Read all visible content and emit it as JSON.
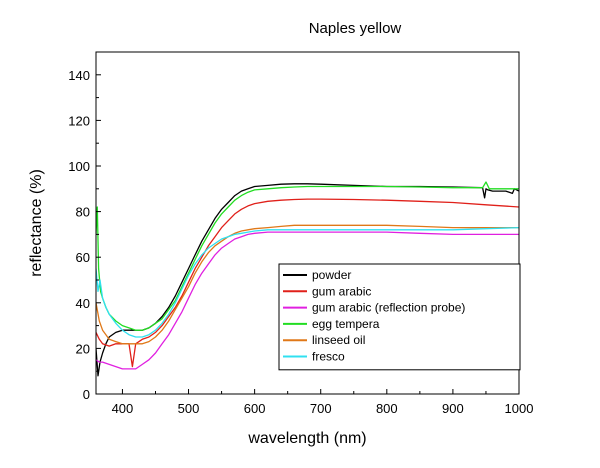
{
  "chart_data": {
    "type": "line",
    "title": "Naples yellow",
    "xlabel": "wavelength (nm)",
    "ylabel": "reflectance (%)",
    "xlim": [
      360,
      1000
    ],
    "ylim": [
      0,
      150
    ],
    "xticks": [
      400,
      500,
      600,
      700,
      800,
      900,
      1000
    ],
    "yticks": [
      0,
      20,
      40,
      60,
      80,
      100,
      120,
      140
    ],
    "grid": false,
    "legend_position": "lower-right",
    "series": [
      {
        "name": "powder",
        "color": "#000000",
        "x": [
          360,
          363,
          366,
          370,
          375,
          380,
          390,
          400,
          410,
          420,
          430,
          440,
          450,
          460,
          470,
          480,
          490,
          500,
          510,
          520,
          530,
          540,
          550,
          560,
          570,
          580,
          590,
          600,
          620,
          640,
          660,
          680,
          700,
          750,
          800,
          850,
          900,
          945,
          948,
          950,
          953,
          960,
          980,
          990,
          993,
          1000
        ],
        "y": [
          20,
          8,
          14,
          18,
          22,
          25,
          27,
          28,
          28,
          28,
          28,
          29,
          31,
          34,
          38,
          43,
          49,
          55,
          61,
          67,
          72,
          77,
          81,
          84,
          87,
          89,
          90,
          91,
          91.5,
          92,
          92.2,
          92.2,
          92,
          91.5,
          91,
          91,
          90.8,
          90.5,
          86,
          90,
          89.5,
          89,
          89,
          88,
          90,
          89
        ]
      },
      {
        "name": "gum arabic",
        "color": "#e0201a",
        "x": [
          360,
          365,
          370,
          380,
          390,
          400,
          410,
          415,
          420,
          425,
          430,
          440,
          450,
          460,
          470,
          480,
          490,
          500,
          510,
          520,
          530,
          540,
          550,
          560,
          570,
          580,
          590,
          600,
          620,
          640,
          660,
          680,
          700,
          750,
          800,
          850,
          900,
          950,
          1000
        ],
        "y": [
          27,
          24,
          22,
          21,
          22,
          22,
          22,
          12,
          22,
          23,
          24,
          25,
          27,
          30,
          34,
          38,
          43,
          49,
          55,
          60,
          65,
          69,
          73,
          76,
          79,
          81,
          82.5,
          83.5,
          84.5,
          85,
          85.3,
          85.5,
          85.5,
          85.3,
          85,
          84.5,
          84,
          83,
          82
        ]
      },
      {
        "name": "gum arabic (reflection probe)",
        "color": "#e020e0",
        "x": [
          360,
          365,
          370,
          380,
          390,
          400,
          410,
          420,
          430,
          440,
          450,
          460,
          470,
          480,
          490,
          500,
          510,
          520,
          530,
          540,
          550,
          560,
          570,
          580,
          590,
          600,
          620,
          640,
          660,
          680,
          700,
          750,
          800,
          850,
          900,
          950,
          1000
        ],
        "y": [
          15,
          14,
          14,
          13,
          12,
          11,
          11,
          11,
          13,
          15,
          18,
          22,
          26,
          31,
          36,
          42,
          48,
          53,
          57,
          61,
          64,
          66,
          68,
          69,
          70,
          70.5,
          71,
          71,
          71,
          71,
          71,
          71,
          71,
          70.5,
          70,
          70,
          70
        ]
      },
      {
        "name": "egg tempera",
        "color": "#22dd22",
        "x": [
          360,
          362,
          364,
          367,
          370,
          375,
          380,
          390,
          400,
          410,
          420,
          430,
          440,
          450,
          460,
          470,
          480,
          490,
          500,
          510,
          520,
          530,
          540,
          550,
          560,
          570,
          580,
          590,
          600,
          620,
          640,
          660,
          680,
          700,
          750,
          800,
          850,
          900,
          945,
          950,
          955,
          1000
        ],
        "y": [
          70,
          82,
          55,
          45,
          42,
          38,
          35,
          32,
          30,
          29,
          28,
          28,
          29,
          31,
          33,
          37,
          41,
          47,
          53,
          59,
          65,
          70,
          75,
          79,
          82,
          85,
          87,
          88.5,
          89.5,
          90,
          90.5,
          90.8,
          91,
          91,
          91,
          91,
          90.8,
          90.5,
          90.5,
          93,
          90,
          90
        ]
      },
      {
        "name": "linseed oil",
        "color": "#e07818",
        "x": [
          360,
          365,
          370,
          375,
          380,
          390,
          400,
          410,
          420,
          430,
          440,
          450,
          460,
          470,
          480,
          490,
          500,
          510,
          520,
          530,
          540,
          550,
          560,
          570,
          580,
          590,
          600,
          620,
          640,
          660,
          680,
          700,
          750,
          800,
          850,
          900,
          950,
          1000
        ],
        "y": [
          40,
          32,
          28,
          26,
          24,
          23,
          22,
          22,
          22,
          22,
          23,
          25,
          28,
          32,
          37,
          42,
          47,
          53,
          58,
          62,
          65,
          67,
          69,
          70.5,
          71.5,
          72,
          72.5,
          73,
          73.5,
          74,
          74,
          74,
          74,
          74,
          73.5,
          73,
          73,
          73
        ]
      },
      {
        "name": "fresco",
        "color": "#30e0f0",
        "x": [
          360,
          363,
          366,
          370,
          375,
          380,
          390,
          400,
          410,
          420,
          430,
          440,
          450,
          460,
          470,
          480,
          490,
          500,
          510,
          520,
          530,
          540,
          550,
          560,
          570,
          580,
          590,
          600,
          620,
          640,
          660,
          680,
          700,
          750,
          800,
          850,
          900,
          950,
          1000
        ],
        "y": [
          55,
          45,
          50,
          42,
          38,
          35,
          31,
          28,
          26,
          25,
          25,
          26,
          28,
          31,
          35,
          40,
          46,
          52,
          57,
          61,
          64,
          66,
          68,
          69,
          70,
          70.5,
          71,
          71.5,
          72,
          72,
          72,
          72,
          72,
          72,
          72,
          72,
          72,
          72.5,
          73
        ]
      }
    ]
  }
}
